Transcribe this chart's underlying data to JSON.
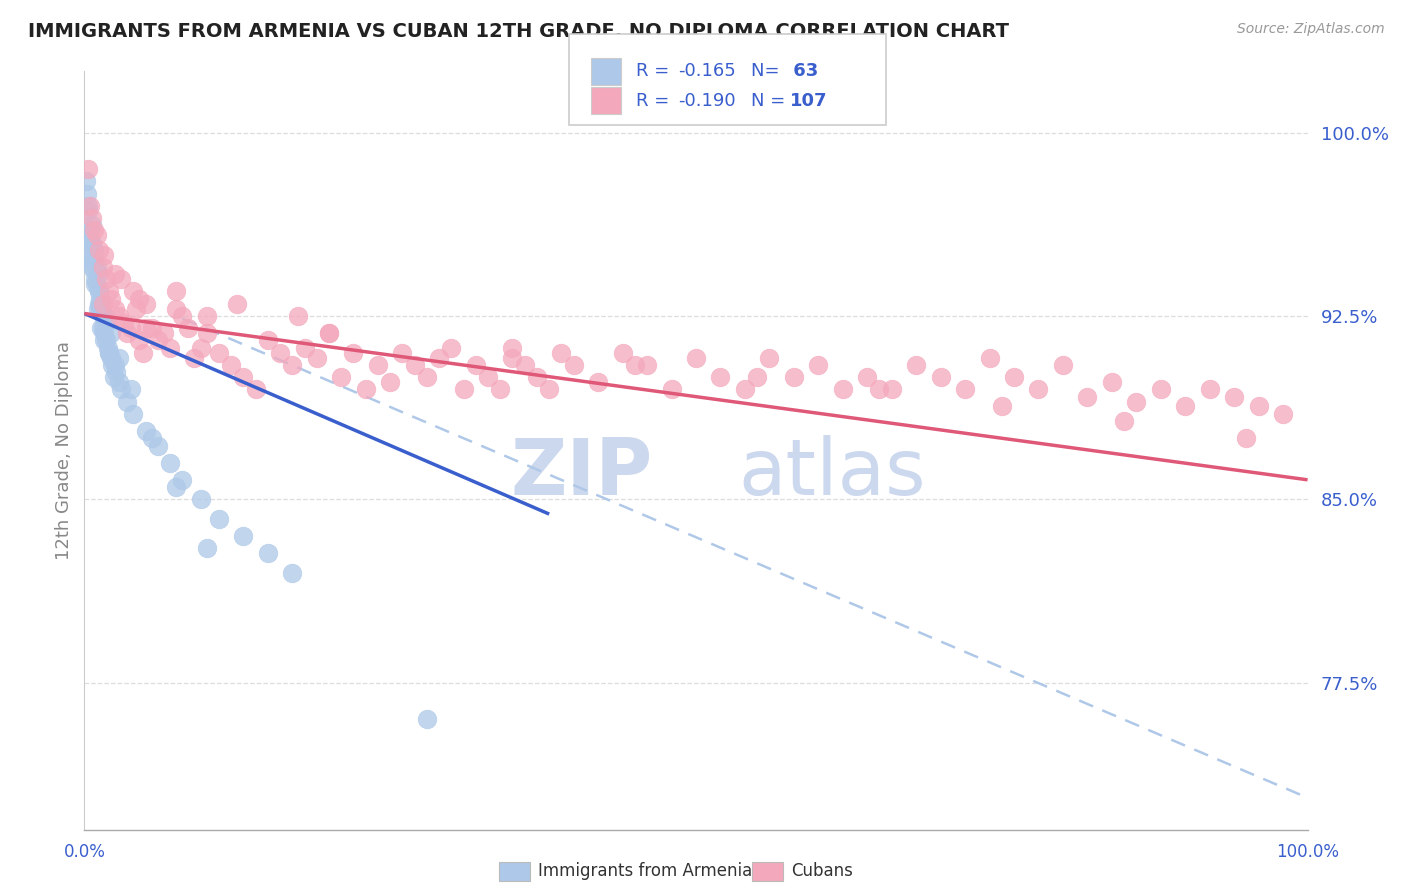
{
  "title": "IMMIGRANTS FROM ARMENIA VS CUBAN 12TH GRADE, NO DIPLOMA CORRELATION CHART",
  "source": "Source: ZipAtlas.com",
  "ylabel": "12th Grade, No Diploma",
  "xlim": [
    0.0,
    1.0
  ],
  "ylim": [
    0.715,
    1.025
  ],
  "yticks": [
    0.775,
    0.85,
    0.925,
    1.0
  ],
  "ytick_labels": [
    "77.5%",
    "85.0%",
    "92.5%",
    "100.0%"
  ],
  "xticks": [
    0.0,
    0.125,
    0.25,
    0.375,
    0.5,
    0.625,
    0.75,
    0.875,
    1.0
  ],
  "xtick_labels": [
    "0.0%",
    "",
    "",
    "",
    "",
    "",
    "",
    "",
    "100.0%"
  ],
  "armenia_R": -0.165,
  "armenia_N": 63,
  "cuba_R": -0.19,
  "cuba_N": 107,
  "armenia_color": "#adc8e8",
  "armenia_edge_color": "#adc8e8",
  "cuba_color": "#f4a8bc",
  "cuba_edge_color": "#f4a8bc",
  "armenia_line_color": "#3a5fcd",
  "cuba_line_color": "#e05878",
  "dashed_line_color": "#b0c8e8",
  "background_color": "#ffffff",
  "grid_color": "#dddddd",
  "watermark_zip": "ZIP",
  "watermark_atlas": "atlas",
  "watermark_color": "#ccd8ee",
  "legend_blue_color": "#3a5fcd",
  "legend_r_value_color": "#e05878",
  "title_color": "#222222",
  "axis_label_color": "#888888",
  "armenia_x_data": [
    0.002,
    0.004,
    0.004,
    0.005,
    0.006,
    0.006,
    0.007,
    0.008,
    0.009,
    0.01,
    0.01,
    0.011,
    0.012,
    0.012,
    0.013,
    0.013,
    0.014,
    0.015,
    0.015,
    0.016,
    0.018,
    0.018,
    0.019,
    0.02,
    0.022,
    0.023,
    0.024,
    0.025,
    0.026,
    0.028,
    0.003,
    0.005,
    0.007,
    0.009,
    0.011,
    0.014,
    0.016,
    0.02,
    0.03,
    0.035,
    0.04,
    0.05,
    0.06,
    0.07,
    0.08,
    0.095,
    0.11,
    0.13,
    0.15,
    0.17,
    0.001,
    0.003,
    0.006,
    0.008,
    0.012,
    0.017,
    0.022,
    0.028,
    0.038,
    0.055,
    0.075,
    0.1,
    0.28
  ],
  "armenia_y_data": [
    0.975,
    0.96,
    0.958,
    0.955,
    0.962,
    0.948,
    0.945,
    0.952,
    0.94,
    0.945,
    0.938,
    0.942,
    0.93,
    0.935,
    0.928,
    0.932,
    0.93,
    0.925,
    0.92,
    0.918,
    0.922,
    0.915,
    0.912,
    0.91,
    0.908,
    0.905,
    0.9,
    0.905,
    0.902,
    0.898,
    0.968,
    0.95,
    0.944,
    0.938,
    0.928,
    0.92,
    0.915,
    0.91,
    0.895,
    0.89,
    0.885,
    0.878,
    0.872,
    0.865,
    0.858,
    0.85,
    0.842,
    0.835,
    0.828,
    0.82,
    0.98,
    0.97,
    0.955,
    0.948,
    0.935,
    0.925,
    0.918,
    0.908,
    0.895,
    0.875,
    0.855,
    0.83,
    0.76
  ],
  "cuba_x_data": [
    0.005,
    0.006,
    0.01,
    0.012,
    0.015,
    0.018,
    0.02,
    0.022,
    0.025,
    0.028,
    0.03,
    0.032,
    0.035,
    0.038,
    0.04,
    0.042,
    0.045,
    0.048,
    0.05,
    0.055,
    0.06,
    0.065,
    0.07,
    0.075,
    0.08,
    0.085,
    0.09,
    0.095,
    0.1,
    0.11,
    0.12,
    0.13,
    0.14,
    0.15,
    0.16,
    0.17,
    0.18,
    0.19,
    0.2,
    0.21,
    0.22,
    0.23,
    0.24,
    0.25,
    0.26,
    0.27,
    0.28,
    0.29,
    0.3,
    0.31,
    0.32,
    0.33,
    0.34,
    0.35,
    0.36,
    0.37,
    0.38,
    0.39,
    0.4,
    0.42,
    0.44,
    0.46,
    0.48,
    0.5,
    0.52,
    0.54,
    0.56,
    0.58,
    0.6,
    0.62,
    0.64,
    0.66,
    0.68,
    0.7,
    0.72,
    0.74,
    0.76,
    0.78,
    0.8,
    0.82,
    0.84,
    0.86,
    0.88,
    0.9,
    0.92,
    0.94,
    0.96,
    0.98,
    0.015,
    0.05,
    0.1,
    0.2,
    0.35,
    0.45,
    0.55,
    0.65,
    0.75,
    0.85,
    0.95,
    0.008,
    0.003,
    0.016,
    0.025,
    0.045,
    0.075,
    0.125,
    0.175
  ],
  "cuba_y_data": [
    0.97,
    0.965,
    0.958,
    0.952,
    0.945,
    0.94,
    0.935,
    0.932,
    0.928,
    0.925,
    0.94,
    0.922,
    0.918,
    0.92,
    0.935,
    0.928,
    0.915,
    0.91,
    0.93,
    0.92,
    0.915,
    0.918,
    0.912,
    0.928,
    0.925,
    0.92,
    0.908,
    0.912,
    0.918,
    0.91,
    0.905,
    0.9,
    0.895,
    0.915,
    0.91,
    0.905,
    0.912,
    0.908,
    0.918,
    0.9,
    0.91,
    0.895,
    0.905,
    0.898,
    0.91,
    0.905,
    0.9,
    0.908,
    0.912,
    0.895,
    0.905,
    0.9,
    0.895,
    0.908,
    0.905,
    0.9,
    0.895,
    0.91,
    0.905,
    0.898,
    0.91,
    0.905,
    0.895,
    0.908,
    0.9,
    0.895,
    0.908,
    0.9,
    0.905,
    0.895,
    0.9,
    0.895,
    0.905,
    0.9,
    0.895,
    0.908,
    0.9,
    0.895,
    0.905,
    0.892,
    0.898,
    0.89,
    0.895,
    0.888,
    0.895,
    0.892,
    0.888,
    0.885,
    0.93,
    0.92,
    0.925,
    0.918,
    0.912,
    0.905,
    0.9,
    0.895,
    0.888,
    0.882,
    0.875,
    0.96,
    0.985,
    0.95,
    0.942,
    0.932,
    0.935,
    0.93,
    0.925
  ],
  "arm_line_x": [
    0.0,
    0.38
  ],
  "arm_line_y": [
    0.926,
    0.844
  ],
  "cub_line_x": [
    0.0,
    1.0
  ],
  "cub_line_y": [
    0.926,
    0.858
  ],
  "dash_line_x": [
    0.08,
    1.0
  ],
  "dash_line_y": [
    0.924,
    0.728
  ]
}
